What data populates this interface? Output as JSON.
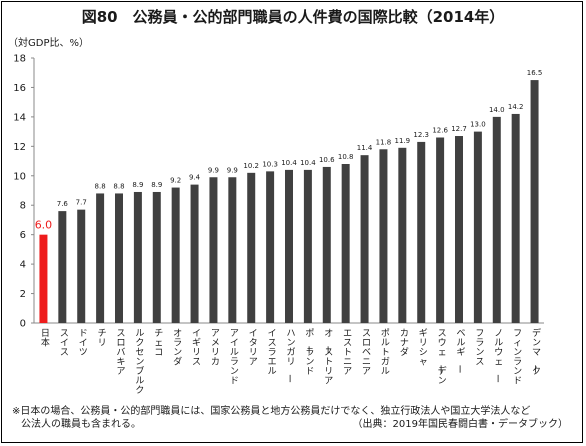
{
  "title": "図80　公務員・公的部門職員の人件費の国際比較（2014年）",
  "unit": "（対GDP比、%）",
  "footnote": {
    "line1": "※日本の場合、公務員・公的部門職員には、国家公務員と地方公務員だけでなく、独立行政法人や国立大学法人など",
    "line2": "公法人の職員も含まれる。",
    "source": "（出典：2019年国民春闘白書・データブック）"
  },
  "colors": {
    "highlight": "#ee1c1c",
    "bar": "#404040",
    "axis": "#888888"
  },
  "chart_data": {
    "type": "bar",
    "categories": [
      "日本",
      "スイス",
      "ドイツ",
      "チリ",
      "スロバキア",
      "ルクセンブルク",
      "チェコ",
      "オランダ",
      "イギリス",
      "アメリカ",
      "アイルランド",
      "イタリア",
      "イスラエル",
      "ハンガリー",
      "ポーランド",
      "オーストリア",
      "エストニア",
      "スロベニア",
      "ポルトガル",
      "カナダ",
      "ギリシャ",
      "スウェーデン",
      "ベルギー",
      "フランス",
      "ノルウェー",
      "フィンランド",
      "デンマーク"
    ],
    "values": [
      6.0,
      7.6,
      7.7,
      8.8,
      8.8,
      8.9,
      8.9,
      9.2,
      9.4,
      9.9,
      9.9,
      10.2,
      10.3,
      10.4,
      10.4,
      10.6,
      10.8,
      11.4,
      11.8,
      11.9,
      12.3,
      12.6,
      12.7,
      13.0,
      14.0,
      14.2,
      16.5
    ],
    "ylim": [
      0,
      18
    ],
    "yticks": [
      "0",
      "2",
      "4",
      "6",
      "8",
      "10",
      "12",
      "14",
      "16",
      "18"
    ],
    "highlight_category": "日本",
    "grid": false
  }
}
